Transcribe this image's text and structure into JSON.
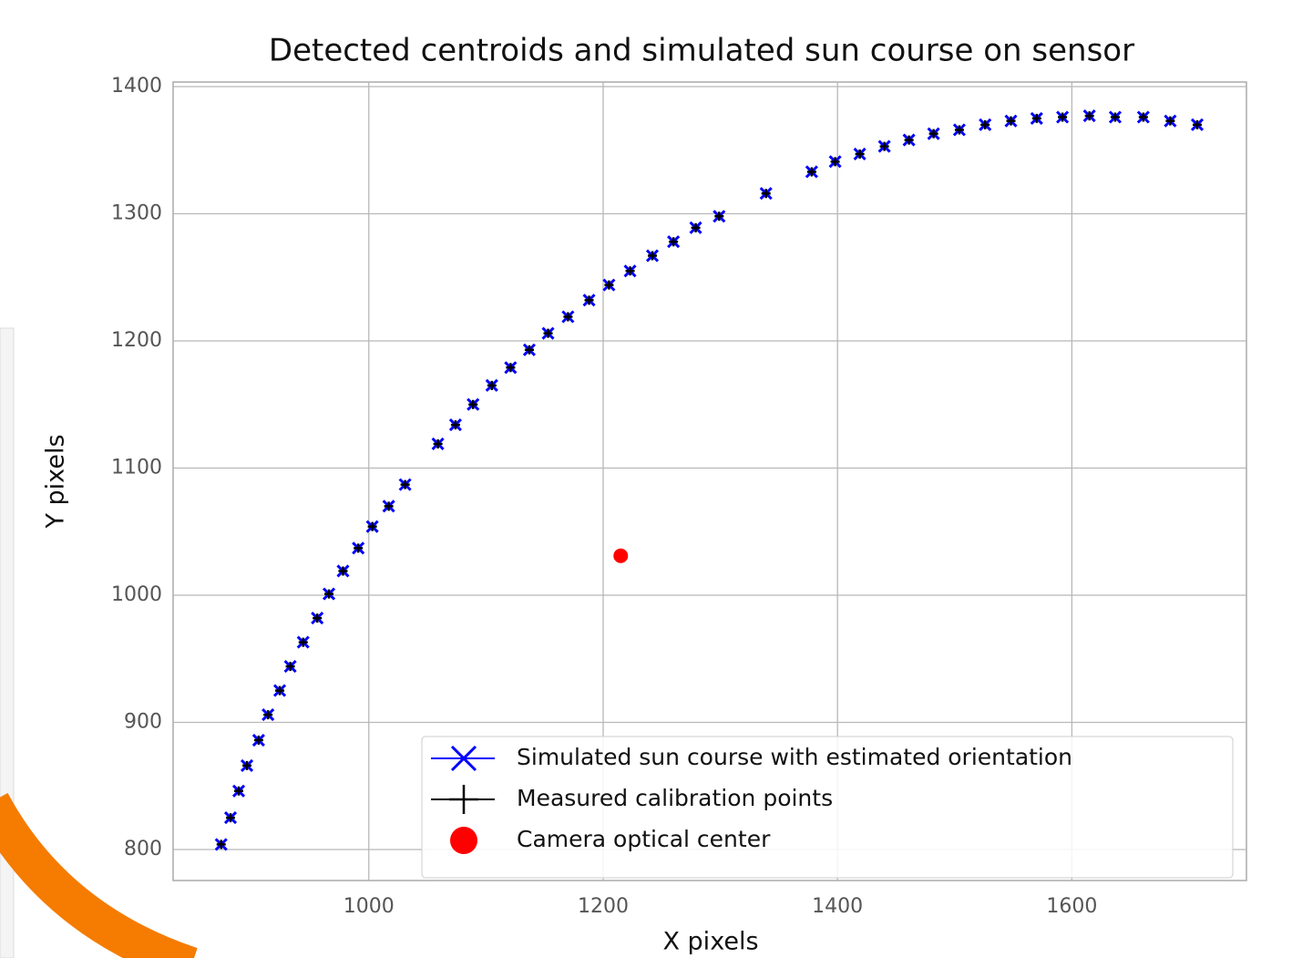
{
  "chart_data": {
    "type": "scatter",
    "title": "Detected centroids and simulated sun course on sensor",
    "xlabel": "X pixels",
    "ylabel": "Y pixels",
    "xlim": [
      833,
      1749
    ],
    "ylim": [
      775.6,
      1403.6
    ],
    "xticks": [
      1000,
      1200,
      1400,
      1600
    ],
    "yticks": [
      800,
      900,
      1000,
      1100,
      1200,
      1300,
      1400
    ],
    "grid": true,
    "legend": "lower right",
    "series": [
      {
        "name": "Simulated sun course with estimated orientation",
        "color": "#0000ff",
        "marker": "x",
        "x": [
          874,
          882,
          889,
          896,
          906,
          914,
          924,
          933,
          944,
          956,
          966,
          978,
          991,
          1003,
          1017,
          1031,
          1059,
          1074,
          1089,
          1105,
          1121,
          1137,
          1153,
          1170,
          1188,
          1205,
          1223,
          1242,
          1260,
          1279,
          1299,
          1339,
          1378,
          1398,
          1419,
          1440,
          1461,
          1482,
          1504,
          1526,
          1548,
          1570,
          1592,
          1615,
          1637,
          1661,
          1684,
          1707
        ],
        "values": [
          804,
          825,
          846,
          866,
          886,
          906,
          925,
          944,
          963,
          982,
          1001,
          1019,
          1037,
          1054,
          1070,
          1087,
          1119,
          1134,
          1150,
          1165,
          1179,
          1193,
          1206,
          1219,
          1232,
          1244,
          1255,
          1267,
          1278,
          1289,
          1298,
          1316,
          1333,
          1341,
          1347,
          1353,
          1358,
          1363,
          1366,
          1370,
          1373,
          1375,
          1376,
          1377,
          1376,
          1376,
          1373,
          1370
        ]
      },
      {
        "name": "Measured calibration points",
        "color": "#000000",
        "marker": "+",
        "x": [
          874,
          882,
          889,
          896,
          906,
          914,
          924,
          933,
          944,
          956,
          966,
          978,
          991,
          1003,
          1017,
          1031,
          1059,
          1074,
          1089,
          1105,
          1121,
          1137,
          1153,
          1170,
          1188,
          1205,
          1223,
          1242,
          1260,
          1279,
          1299,
          1339,
          1378,
          1398,
          1419,
          1440,
          1461,
          1482,
          1504,
          1526,
          1548,
          1570,
          1592,
          1615,
          1637,
          1661,
          1684,
          1707
        ],
        "values": [
          804,
          825,
          846,
          866,
          886,
          906,
          925,
          944,
          963,
          982,
          1001,
          1019,
          1037,
          1054,
          1070,
          1087,
          1119,
          1134,
          1150,
          1165,
          1179,
          1193,
          1206,
          1219,
          1232,
          1244,
          1255,
          1267,
          1278,
          1289,
          1298,
          1316,
          1333,
          1341,
          1347,
          1353,
          1358,
          1363,
          1366,
          1370,
          1373,
          1375,
          1376,
          1377,
          1376,
          1376,
          1373,
          1370
        ]
      },
      {
        "name": "Camera optical center",
        "color": "#ff0000",
        "marker": "o",
        "x": [
          1215
        ],
        "values": [
          1031
        ]
      }
    ]
  }
}
